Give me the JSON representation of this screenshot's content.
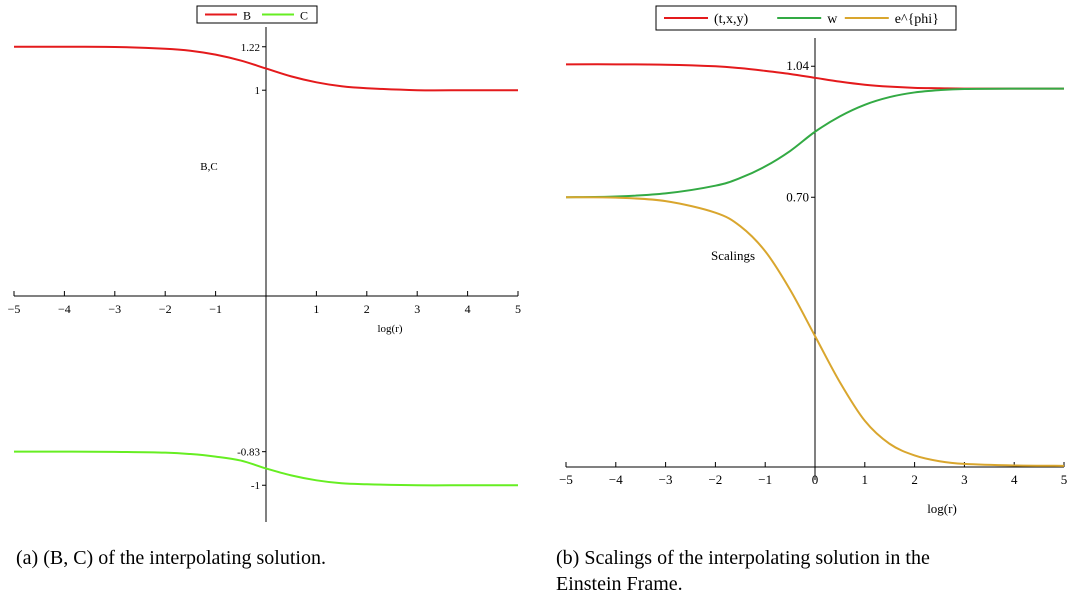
{
  "chart_data": [
    {
      "type": "line",
      "xlabel": "log(r)",
      "ylabel": "B,C",
      "xlim": [
        -5,
        5
      ],
      "ylim": [
        -1.1,
        1.32
      ],
      "x_ticks": [
        "-5",
        "-4",
        "-3",
        "-2",
        "-1",
        "1",
        "2",
        "3",
        "4",
        "5"
      ],
      "y_ticks": [
        "1.22",
        "1",
        "-0.83",
        "-1"
      ],
      "legend": "top-center",
      "x": [
        -5,
        -4,
        -3,
        -2,
        -1.5,
        -1,
        -0.5,
        0,
        0.5,
        1,
        1.5,
        2,
        3,
        4,
        5
      ],
      "series": [
        {
          "name": "B",
          "color": "#e41a1c",
          "values": [
            1.22,
            1.22,
            1.219,
            1.21,
            1.2,
            1.18,
            1.15,
            1.11,
            1.07,
            1.04,
            1.02,
            1.01,
            1.0,
            1.0,
            1.0
          ]
        },
        {
          "name": "C",
          "color": "#66ee22",
          "values": [
            -0.83,
            -0.83,
            -0.831,
            -0.835,
            -0.842,
            -0.855,
            -0.875,
            -0.915,
            -0.95,
            -0.975,
            -0.99,
            -0.995,
            -1.0,
            -1.0,
            -1.0
          ]
        }
      ],
      "caption": "(a) (B, C) of the interpolating solution."
    },
    {
      "type": "line",
      "xlabel": "log(r)",
      "ylabel": "Scalings",
      "xlim": [
        -5,
        5
      ],
      "ylim": [
        0.0,
        1.16
      ],
      "x_ticks": [
        "-5",
        "-4",
        "-3",
        "-2",
        "-1",
        "0",
        "1",
        "2",
        "3",
        "4",
        "5"
      ],
      "y_ticks": [
        "1.04",
        "0.70"
      ],
      "legend": "top-center",
      "x": [
        -5,
        -4,
        -3,
        -2,
        -1.5,
        -1,
        -0.5,
        0,
        0.5,
        1,
        1.5,
        2,
        2.5,
        3,
        4,
        5
      ],
      "series": [
        {
          "name": "(t,x,y)",
          "color": "#e41a1c",
          "values": [
            1.045,
            1.045,
            1.044,
            1.04,
            1.035,
            1.028,
            1.02,
            1.01,
            1.0,
            0.992,
            0.987,
            0.984,
            0.983,
            0.982,
            0.982,
            0.982
          ]
        },
        {
          "name": "w",
          "color": "#33aa44",
          "values": [
            0.7,
            0.702,
            0.71,
            0.73,
            0.75,
            0.78,
            0.82,
            0.87,
            0.91,
            0.94,
            0.96,
            0.972,
            0.978,
            0.981,
            0.982,
            0.982
          ]
        },
        {
          "name": "e^{phi}",
          "color": "#d9a62e",
          "values": [
            0.7,
            0.699,
            0.69,
            0.66,
            0.625,
            0.56,
            0.46,
            0.34,
            0.22,
            0.12,
            0.06,
            0.03,
            0.015,
            0.008,
            0.004,
            0.003
          ]
        }
      ],
      "caption_line1": "(b) Scalings of the interpolating solution in the",
      "caption_line2": "Einstein Frame."
    }
  ]
}
